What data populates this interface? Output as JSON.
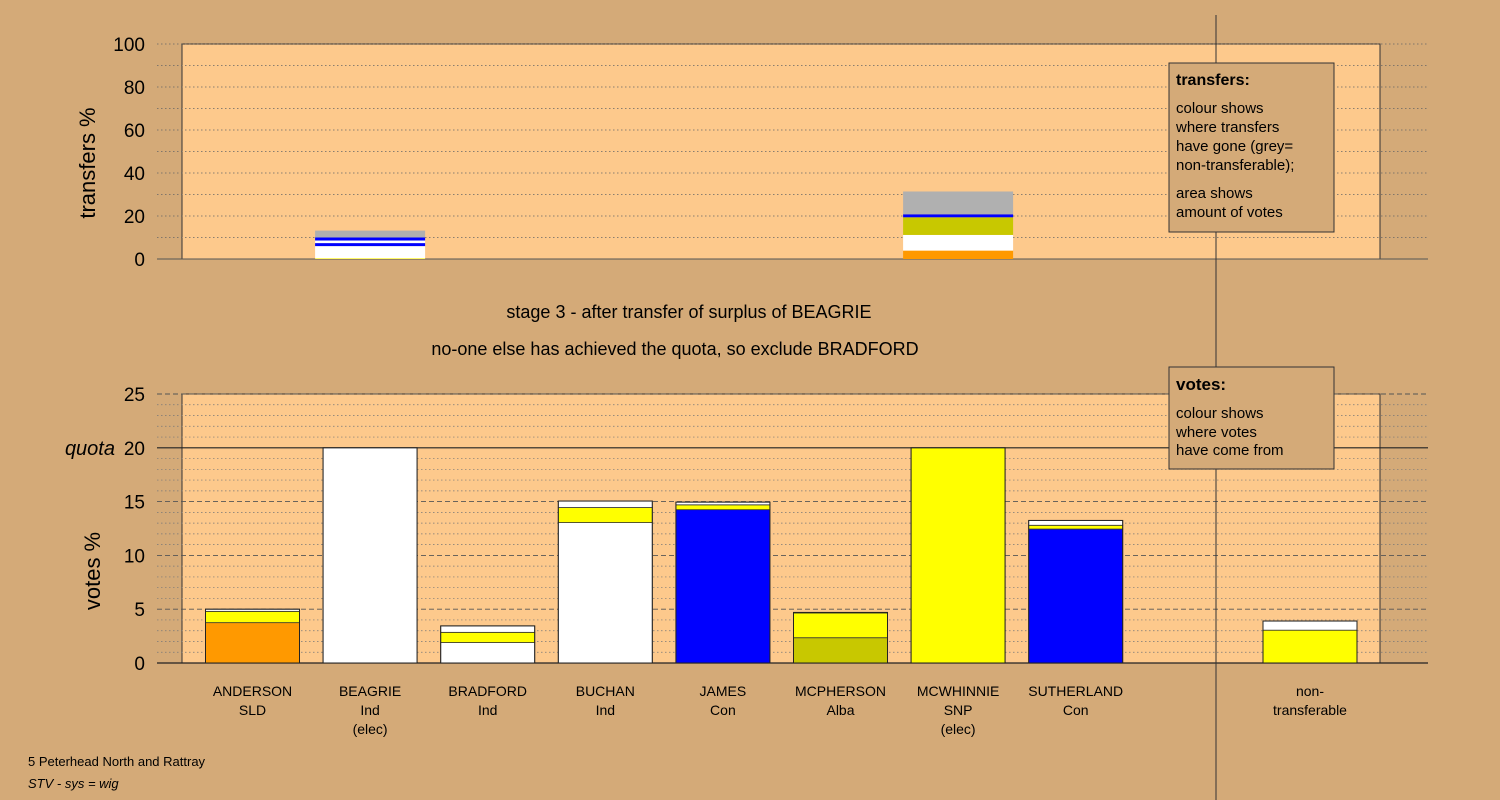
{
  "header": {
    "line1": "stage 3 - after transfer of surplus of BEAGRIE",
    "line2": "no-one else has achieved the quota, so exclude BRADFORD"
  },
  "footer": {
    "ward": "5 Peterhead North and Rattray",
    "system": "STV - sys = wig"
  },
  "legends": {
    "transfers": {
      "title": "transfers:",
      "lines": [
        "colour shows",
        "where transfers",
        "have gone (grey=",
        "non-transferable);",
        "area shows",
        "amount of votes"
      ]
    },
    "votes": {
      "title": "votes:",
      "lines": [
        "colour shows",
        "where votes",
        "have come from"
      ]
    }
  },
  "colors": {
    "background": "#d4aa78",
    "plot": "#fdc98c",
    "SLD": "#ff9900",
    "Ind": "#ffffff",
    "Con": "#0000ff",
    "Alba": "#c8c800",
    "SNP": "#ffff00",
    "nontransferable": "#b0b0b0"
  },
  "chart_data": [
    {
      "type": "bar",
      "stacked": true,
      "ylabel": "transfers %",
      "ylim": [
        0,
        100
      ],
      "yticks": [
        0,
        20,
        40,
        60,
        80,
        100
      ],
      "grid": "dotted every 10",
      "bars": [
        {
          "position": "BEAGRIE",
          "segments": [
            {
              "color": "SNP",
              "value": 0.3
            },
            {
              "color": "Ind",
              "value": 5.7
            },
            {
              "color": "Con",
              "value": 1.4
            },
            {
              "color": "Ind",
              "value": 1.2
            },
            {
              "color": "Con",
              "value": 1.4
            },
            {
              "color": "nontransferable",
              "value": 3.2
            }
          ]
        },
        {
          "position": "MCWHINNIE",
          "segments": [
            {
              "color": "SLD",
              "value": 3.9
            },
            {
              "color": "Ind",
              "value": 7.3
            },
            {
              "color": "Alba",
              "value": 8.2
            },
            {
              "color": "Con",
              "value": 1.4
            },
            {
              "color": "nontransferable",
              "value": 10.6
            }
          ]
        }
      ]
    },
    {
      "type": "bar",
      "stacked": true,
      "ylabel": "votes %",
      "ylim": [
        0,
        25
      ],
      "yticks": [
        0,
        5,
        10,
        15,
        20,
        25
      ],
      "quota": 20,
      "quota_label": "quota",
      "grid": "dashed every 5, dotted every 1",
      "categories": [
        {
          "name": "ANDERSON",
          "party": "SLD",
          "note": ""
        },
        {
          "name": "BEAGRIE",
          "party": "Ind",
          "note": "(elec)"
        },
        {
          "name": "BRADFORD",
          "party": "Ind",
          "note": ""
        },
        {
          "name": "BUCHAN",
          "party": "Ind",
          "note": ""
        },
        {
          "name": "JAMES",
          "party": "Con",
          "note": ""
        },
        {
          "name": "MCPHERSON",
          "party": "Alba",
          "note": ""
        },
        {
          "name": "MCWHINNIE",
          "party": "SNP",
          "note": "(elec)"
        },
        {
          "name": "SUTHERLAND",
          "party": "Con",
          "note": ""
        },
        {
          "name": "non-",
          "party": "transferable",
          "note": ""
        }
      ],
      "bars": [
        [
          {
            "color": "SLD",
            "value": 3.75
          },
          {
            "color": "SNP",
            "value": 1.05
          },
          {
            "color": "Ind",
            "value": 0.2
          }
        ],
        [
          {
            "color": "Ind",
            "value": 20.0
          }
        ],
        [
          {
            "color": "Ind",
            "value": 1.9
          },
          {
            "color": "SNP",
            "value": 0.95
          },
          {
            "color": "Ind",
            "value": 0.6
          }
        ],
        [
          {
            "color": "Ind",
            "value": 13.05
          },
          {
            "color": "SNP",
            "value": 1.4
          },
          {
            "color": "Ind",
            "value": 0.6
          }
        ],
        [
          {
            "color": "Con",
            "value": 14.25
          },
          {
            "color": "SNP",
            "value": 0.45
          },
          {
            "color": "Ind",
            "value": 0.25
          }
        ],
        [
          {
            "color": "Alba",
            "value": 2.35
          },
          {
            "color": "SNP",
            "value": 2.3
          },
          {
            "color": "Ind",
            "value": 0.05
          }
        ],
        [
          {
            "color": "SNP",
            "value": 20.0
          }
        ],
        [
          {
            "color": "Con",
            "value": 12.45
          },
          {
            "color": "SNP",
            "value": 0.35
          },
          {
            "color": "Ind",
            "value": 0.45
          }
        ],
        [
          {
            "color": "SNP",
            "value": 3.05
          },
          {
            "color": "Ind",
            "value": 0.85
          }
        ]
      ]
    }
  ]
}
